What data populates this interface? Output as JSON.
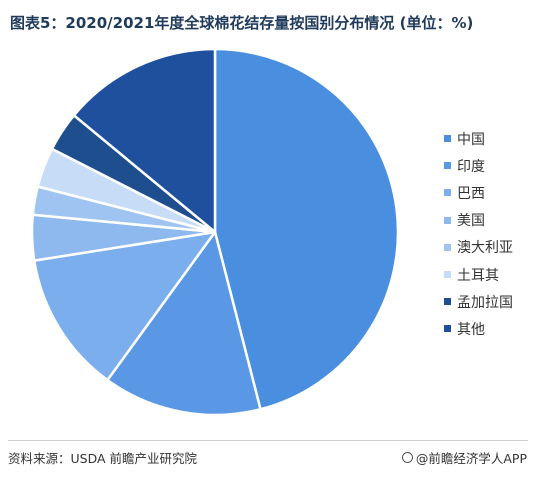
{
  "title": "图表5：2020/2021年度全球棉花结存量按国别分布情况 (单位：%)",
  "chart_data": {
    "type": "pie",
    "title": "图表5：2020/2021年度全球棉花结存量按国别分布情况 (单位：%)",
    "unit": "%",
    "start_angle": "12 o'clock, clockwise",
    "legend_position": "right",
    "categories": [
      "中国",
      "印度",
      "巴西",
      "美国",
      "澳大利亚",
      "土耳其",
      "孟加拉国",
      "其他"
    ],
    "values": [
      46.0,
      14.0,
      12.5,
      4.0,
      2.5,
      3.5,
      3.5,
      14.0
    ],
    "colors": [
      "#4a8ee0",
      "#5a98e6",
      "#7aaeec",
      "#8eb9ee",
      "#9fc4f1",
      "#c7dcf6",
      "#1e4e8e",
      "#1f509e"
    ]
  },
  "watermark": "前瞻产业研究院",
  "footer": {
    "source": "资料来源：USDA 前瞻产业研究院",
    "brand": "@前瞻经济学人APP"
  }
}
